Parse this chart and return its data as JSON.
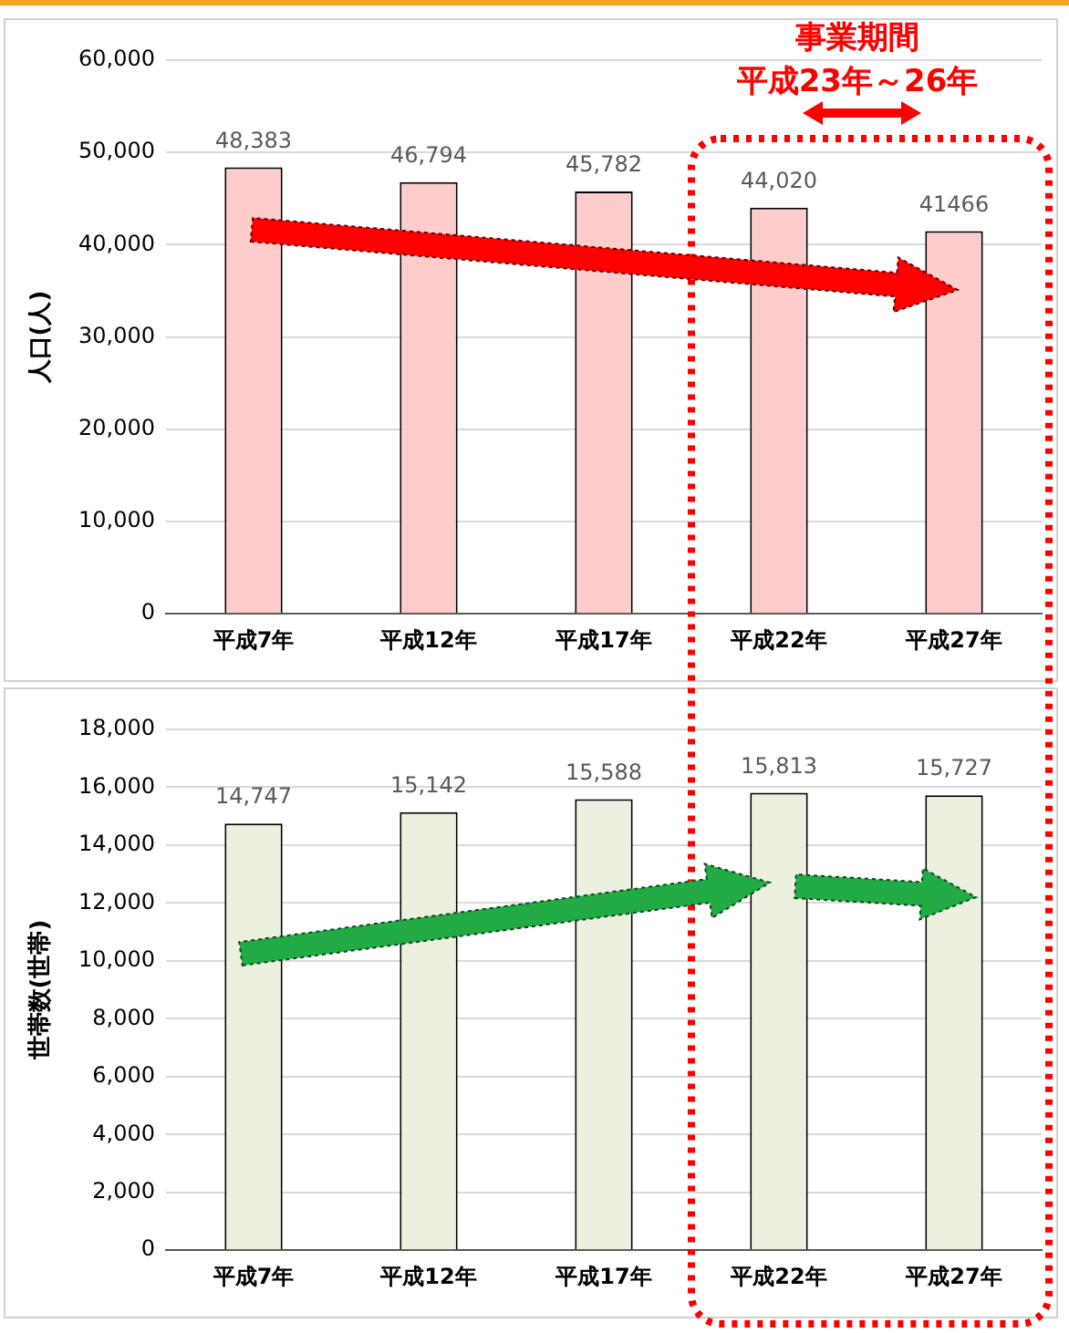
{
  "chart_data": [
    {
      "type": "bar",
      "ylabel": "人口(人)",
      "categories": [
        "平成7年",
        "平成12年",
        "平成17年",
        "平成22年",
        "平成27年"
      ],
      "values": [
        48383,
        46794,
        45782,
        44020,
        41466
      ],
      "value_labels": [
        "48,383",
        "46,794",
        "45,782",
        "44,020",
        "41466"
      ],
      "color": "#ffcccc",
      "ylim": [
        0,
        60000
      ],
      "yticks": [
        0,
        {
          "value": 10000,
          "label": "10,000"
        },
        {
          "value": 20000,
          "label": "20,000"
        },
        {
          "value": 30000,
          "label": "30,000"
        },
        {
          "value": 40000,
          "label": "40,000"
        },
        {
          "value": 50000,
          "label": "50,000"
        },
        {
          "value": 60000,
          "label": "60,000"
        }
      ],
      "grid": "y",
      "annotations": [
        "事業期間",
        "平成23年～26年"
      ]
    },
    {
      "type": "bar",
      "ylabel": "世帯数(世帯)",
      "categories": [
        "平成7年",
        "平成12年",
        "平成17年",
        "平成22年",
        "平成27年"
      ],
      "values": [
        14747,
        15142,
        15588,
        15813,
        15727
      ],
      "value_labels": [
        "14,747",
        "15,142",
        "15,588",
        "15,813",
        "15,727"
      ],
      "color": "#ebf1de",
      "ylim": [
        0,
        18000
      ],
      "yticks": [
        0,
        {
          "value": 2000,
          "label": "2,000"
        },
        {
          "value": 4000,
          "label": "4,000"
        },
        {
          "value": 6000,
          "label": "6,000"
        },
        {
          "value": 8000,
          "label": "8,000"
        },
        {
          "value": 10000,
          "label": "10,000"
        },
        {
          "value": 12000,
          "label": "12,000"
        },
        {
          "value": 14000,
          "label": "14,000"
        },
        {
          "value": 16000,
          "label": "16,000"
        },
        {
          "value": 18000,
          "label": "18,000"
        }
      ],
      "grid": "y"
    }
  ]
}
